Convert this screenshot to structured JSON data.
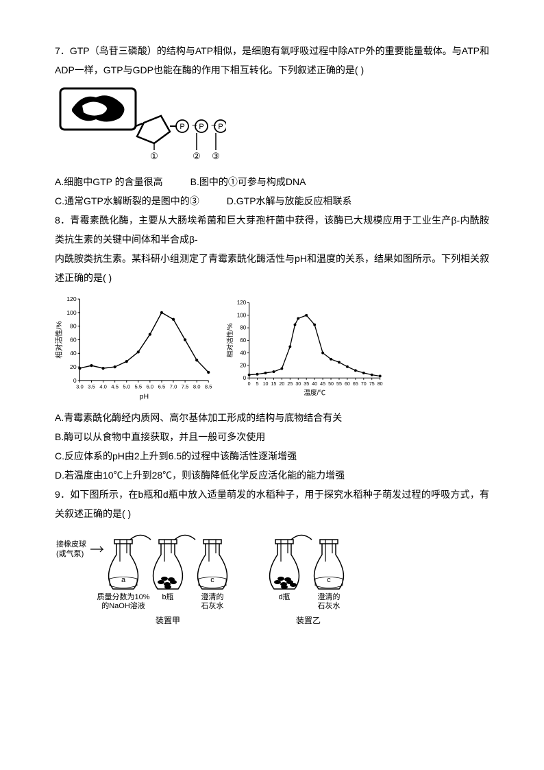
{
  "q7": {
    "stem1": "7．GTP（鸟苷三磷酸）的结构与ATP相似，是细胞有氧呼吸过程中除ATP外的重要能量载体。与ATP和ADP一样，GTP与GDP也能在酶的作用下相互转化。下列叙述正确的是(   )",
    "figure": {
      "labels": [
        "①",
        "②",
        "③"
      ],
      "phosphate_symbol": "P"
    },
    "opt_a": "A.细胞中GTP 的含量很高",
    "opt_b": "B.图中的①可参与构成DNA",
    "opt_c": "C.通常GTP水解断裂的是图中的③",
    "opt_d": "D.GTP水解与放能反应相联系"
  },
  "q8": {
    "stem1": "8．青霉素酰化酶，主要从大肠埃希菌和巨大芽孢杆菌中获得，该酶已大规模应用于工业生产β-内酰胺类抗生素的关键中间体和半合成β-",
    "stem2": "内酰胺类抗生素。某科研小组测定了青霉素酰化酶活性与pH和温度的关系，结果如图所示。下列相关叙述正确的是(   )",
    "chart1": {
      "type": "line",
      "xlabel": "pH",
      "ylabel": "相对活性/%",
      "xlim": [
        3.0,
        8.5
      ],
      "ylim": [
        0,
        120
      ],
      "xticks": [
        "3.0",
        "3.5",
        "4.0",
        "4.5",
        "5.0",
        "5.5",
        "6.0",
        "6.5",
        "7.0",
        "7.5",
        "8.0",
        "8.5"
      ],
      "yticks": [
        0,
        20,
        40,
        60,
        80,
        100,
        120
      ],
      "x": [
        3.0,
        3.5,
        4.0,
        4.5,
        5.0,
        5.5,
        6.0,
        6.5,
        7.0,
        7.5,
        8.0,
        8.5
      ],
      "y": [
        18,
        22,
        18,
        20,
        28,
        42,
        68,
        100,
        90,
        60,
        30,
        12
      ],
      "line_color": "#000000",
      "marker": "circle-filled",
      "marker_size": 4,
      "background_color": "#ffffff",
      "grid": false
    },
    "chart2": {
      "type": "line",
      "xlabel": "温度/℃",
      "ylabel": "相对活性/%",
      "xlim": [
        0,
        80
      ],
      "ylim": [
        0,
        120
      ],
      "xticks": [
        0,
        5,
        10,
        15,
        20,
        25,
        30,
        35,
        40,
        45,
        50,
        55,
        60,
        65,
        70,
        75,
        80
      ],
      "yticks": [
        0,
        20,
        40,
        60,
        80,
        100,
        120
      ],
      "x": [
        0,
        5,
        10,
        15,
        20,
        25,
        28,
        30,
        35,
        40,
        45,
        50,
        55,
        60,
        65,
        70,
        75,
        80
      ],
      "y": [
        5,
        6,
        8,
        10,
        15,
        50,
        85,
        95,
        100,
        85,
        40,
        30,
        25,
        18,
        12,
        8,
        5,
        3
      ],
      "line_color": "#000000",
      "marker": "circle-filled",
      "marker_size": 4,
      "background_color": "#ffffff",
      "grid": false
    },
    "opt_a": "A.青霉素酰化酶经内质网、高尔基体加工形成的结构与底物结合有关",
    "opt_b": "B.酶可以从食物中直接获取，并且一般可多次使用",
    "opt_c": "C.反应体系的pH由2上升到6.5的过程中该酶活性逐渐增强",
    "opt_d": "D.若温度由10℃上升到28℃，则该酶降低化学反应活化能的能力增强"
  },
  "q9": {
    "stem1": "9．如下图所示，在b瓶和d瓶中放入适量萌发的水稻种子，用于探究水稻种子萌发过程的呼吸方式，有关叙述正确的是(   )",
    "apparatus": {
      "left_label": "接橡皮球\n(或气泵)",
      "set1": {
        "flasks": [
          {
            "label": "a",
            "desc1": "质量分数为10%",
            "desc2": "的NaOH溶液"
          },
          {
            "label": "b瓶",
            "desc1": "",
            "desc2": ""
          },
          {
            "label": "c",
            "desc1": "澄清的",
            "desc2": "石灰水"
          }
        ],
        "name": "装置甲"
      },
      "set2": {
        "flasks": [
          {
            "label": "d瓶",
            "desc1": "",
            "desc2": ""
          },
          {
            "label": "c",
            "desc1": "澄清的",
            "desc2": "石灰水"
          }
        ],
        "name": "装置乙"
      }
    }
  }
}
